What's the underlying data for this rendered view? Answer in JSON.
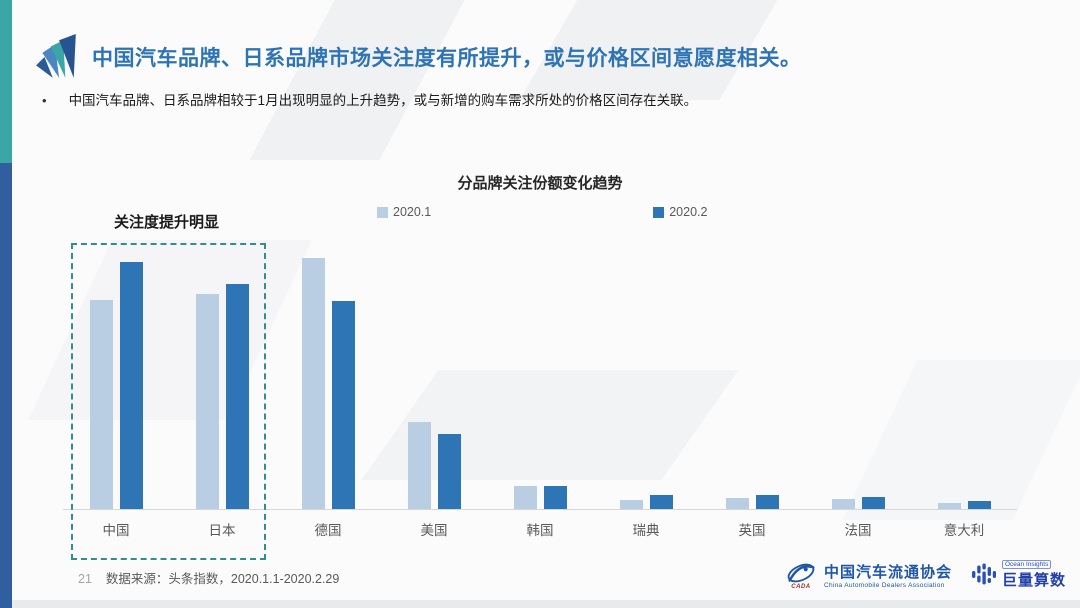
{
  "slide": {
    "title": "中国汽车品牌、日系品牌市场关注度有所提升，或与价格区间意愿度相关。",
    "bullet": "中国汽车品牌、日系品牌相较于1月出现明显的上升趋势，或与新增的购车需求所处的价格区间存在关联。",
    "bullet_marker": "•",
    "page_number": "21",
    "source": "数据来源：头条指数，2020.1.1-2020.2.29"
  },
  "chart_data": {
    "type": "bar",
    "title": "分品牌关注份额变化趋势",
    "annotation": "关注度提升明显",
    "categories": [
      "中国",
      "日本",
      "德国",
      "美国",
      "韩国",
      "瑞典",
      "英国",
      "法国",
      "意大利"
    ],
    "series": [
      {
        "name": "2020.1",
        "color": "#b9cde3",
        "values": [
          25.2,
          25.9,
          30.2,
          10.5,
          2.8,
          1.1,
          1.3,
          1.2,
          0.7
        ]
      },
      {
        "name": "2020.2",
        "color": "#2e75b6",
        "values": [
          29.8,
          27.1,
          25.1,
          9.0,
          2.8,
          1.7,
          1.7,
          1.4,
          1.0
        ]
      }
    ],
    "ylim": [
      0,
      32
    ],
    "y_axis_visible": false,
    "grid": false,
    "legend_position": "top",
    "highlight_box_categories": [
      "中国",
      "日本"
    ],
    "values_note": "values estimated from bar heights; no numeric axis shown"
  },
  "footer_logos": {
    "cada": {
      "abbr": "CADA",
      "name_cn": "中国汽车流通协会",
      "name_en": "China Automobile Dealers Association"
    },
    "ocean": {
      "name_en": "Ocean Insights",
      "name_cn": "巨量算数"
    }
  },
  "colors": {
    "accent_teal": "#3aa6a6",
    "accent_blue": "#2f5f9e",
    "title_blue": "#2e74b5",
    "series_2020_1": "#b9cde3",
    "series_2020_2": "#2e75b6",
    "highlight_box": "#2f8f8f",
    "axis_line": "#d6d6d6",
    "text_gray": "#595959"
  }
}
